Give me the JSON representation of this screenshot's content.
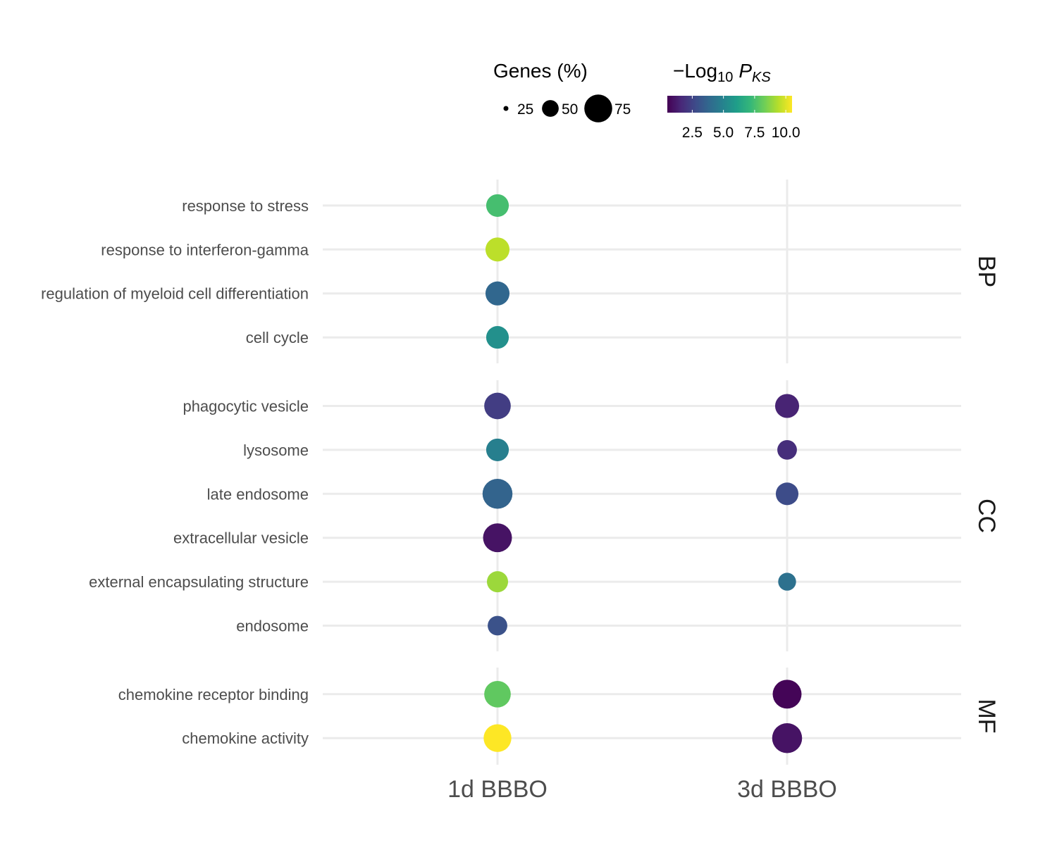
{
  "chart_data": {
    "type": "scatter",
    "columns": [
      "1d BBBO",
      "3d BBBO"
    ],
    "panels": [
      {
        "name": "BP",
        "terms": [
          "response to stress",
          "response to interferon-gamma",
          "regulation of myeloid cell differentiation",
          "cell cycle"
        ]
      },
      {
        "name": "CC",
        "terms": [
          "phagocytic vesicle",
          "lysosome",
          "late endosome",
          "extracellular vesicle",
          "external encapsulating structure",
          "endosome"
        ]
      },
      {
        "name": "MF",
        "terms": [
          "chemokine receptor binding",
          "chemokine activity"
        ]
      }
    ],
    "points": [
      {
        "term": "response to stress",
        "column": "1d BBBO",
        "genes_pct": 40,
        "neg_log10_p": 7.5
      },
      {
        "term": "response to interferon-gamma",
        "column": "1d BBBO",
        "genes_pct": 45,
        "neg_log10_p": 9.5
      },
      {
        "term": "regulation of myeloid cell differentiation",
        "column": "1d BBBO",
        "genes_pct": 45,
        "neg_log10_p": 3.8
      },
      {
        "term": "cell cycle",
        "column": "1d BBBO",
        "genes_pct": 40,
        "neg_log10_p": 5.5
      },
      {
        "term": "phagocytic vesicle",
        "column": "1d BBBO",
        "genes_pct": 55,
        "neg_log10_p": 2.3
      },
      {
        "term": "phagocytic vesicle",
        "column": "3d BBBO",
        "genes_pct": 45,
        "neg_log10_p": 1.5
      },
      {
        "term": "lysosome",
        "column": "1d BBBO",
        "genes_pct": 40,
        "neg_log10_p": 4.8
      },
      {
        "term": "lysosome",
        "column": "3d BBBO",
        "genes_pct": 30,
        "neg_log10_p": 1.8
      },
      {
        "term": "late endosome",
        "column": "1d BBBO",
        "genes_pct": 70,
        "neg_log10_p": 3.7
      },
      {
        "term": "late endosome",
        "column": "3d BBBO",
        "genes_pct": 40,
        "neg_log10_p": 2.8
      },
      {
        "term": "extracellular vesicle",
        "column": "1d BBBO",
        "genes_pct": 65,
        "neg_log10_p": 1.0
      },
      {
        "term": "external encapsulating structure",
        "column": "1d BBBO",
        "genes_pct": 35,
        "neg_log10_p": 9.0
      },
      {
        "term": "external encapsulating structure",
        "column": "3d BBBO",
        "genes_pct": 25,
        "neg_log10_p": 4.2
      },
      {
        "term": "endosome",
        "column": "1d BBBO",
        "genes_pct": 30,
        "neg_log10_p": 3.0
      },
      {
        "term": "chemokine receptor binding",
        "column": "1d BBBO",
        "genes_pct": 55,
        "neg_log10_p": 8.0
      },
      {
        "term": "chemokine receptor binding",
        "column": "3d BBBO",
        "genes_pct": 65,
        "neg_log10_p": 0.6
      },
      {
        "term": "chemokine activity",
        "column": "1d BBBO",
        "genes_pct": 60,
        "neg_log10_p": 10.5
      },
      {
        "term": "chemokine activity",
        "column": "3d BBBO",
        "genes_pct": 70,
        "neg_log10_p": 1.0
      }
    ],
    "size_legend": {
      "title": "Genes (%)",
      "breaks": [
        25,
        50,
        75
      ],
      "labels": [
        "25",
        "50",
        "75"
      ]
    },
    "color_legend": {
      "title_prefix": "−Log",
      "title_subscript": "10",
      "title_symbol": "P",
      "title_symbol_subscript": "KS",
      "breaks": [
        2.5,
        5.0,
        7.5,
        10.0
      ],
      "labels": [
        "2.5",
        "5.0",
        "7.5",
        "10.0"
      ],
      "range": [
        0.5,
        10.5
      ],
      "palette": "viridis"
    },
    "grid": true,
    "legend_position": "top"
  }
}
